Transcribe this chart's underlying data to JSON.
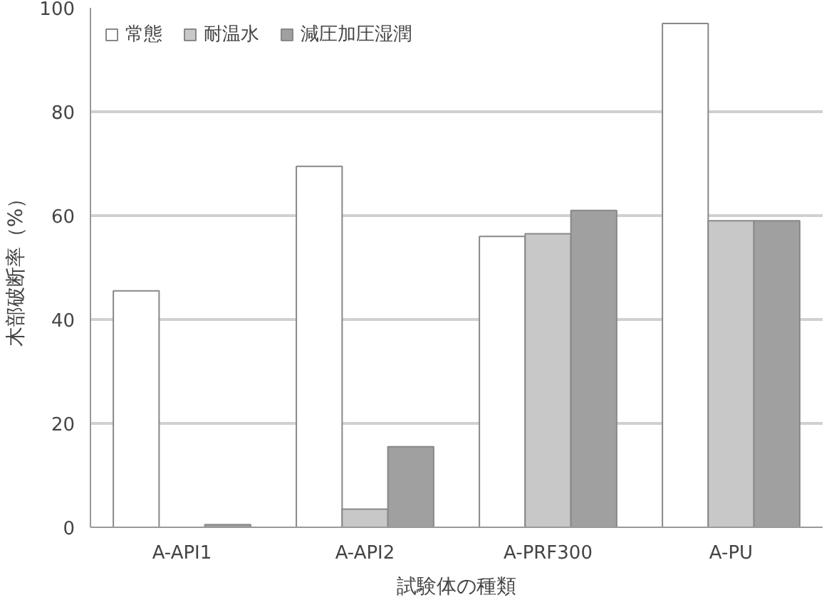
{
  "chart_data": {
    "type": "bar",
    "xlabel": "試験体の種類",
    "ylabel": "木部破断率（%）",
    "categories": [
      "A-API1",
      "A-API2",
      "A-PRF300",
      "A-PU"
    ],
    "series": [
      {
        "name": "常態",
        "color": "#ffffff",
        "values": [
          45.5,
          69.5,
          56,
          97
        ]
      },
      {
        "name": "耐温水",
        "color": "#c8c8c8",
        "values": [
          null,
          3.5,
          56.5,
          59
        ]
      },
      {
        "name": "減圧加圧湿潤",
        "color": "#a0a0a0",
        "values": [
          0.5,
          15.5,
          61,
          59
        ]
      }
    ],
    "ylim": [
      0,
      100
    ],
    "yticks": [
      0,
      20,
      40,
      60,
      80,
      100
    ],
    "grid": "y",
    "legend": "top left"
  }
}
